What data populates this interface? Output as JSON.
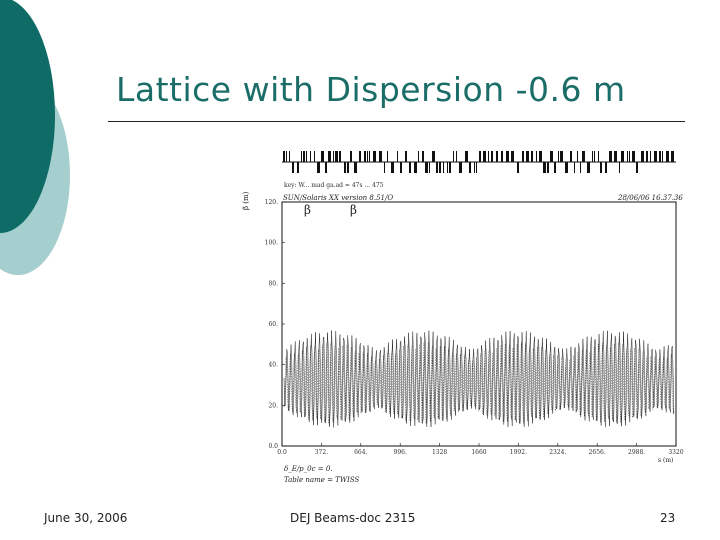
{
  "slide": {
    "title": "Lattice with Dispersion -0.6 m",
    "footer_date": "June 30, 2006",
    "footer_doc": "DEJ Beams-doc 2315",
    "page_number": "23"
  },
  "plot": {
    "header_line": "key: W... mad ga.ad = 47s ... 475",
    "run_label": "SUN/Solaris XX  version 8.51/O",
    "timestamp": "28/06/06  16.37.36",
    "ylabel": "β (m)",
    "legend": [
      "β",
      "β"
    ],
    "x_ticks": [
      "0.0",
      "372.",
      "664.",
      "996.",
      "1328",
      "1660",
      "1992.",
      "2324.",
      "2656.",
      "2988.",
      "3320"
    ],
    "y_ticks": [
      "120.",
      "100.",
      "80.",
      "60.",
      "40.",
      "20.",
      "0.0"
    ],
    "xunit": "s (m)",
    "footnote_1": "δ_E/p_0c = 0.",
    "footnote_2": "Table name = TWISS"
  },
  "colors": {
    "accent": "#1b6d68",
    "accent_light": "#a5cfce",
    "ink": "#222222"
  }
}
